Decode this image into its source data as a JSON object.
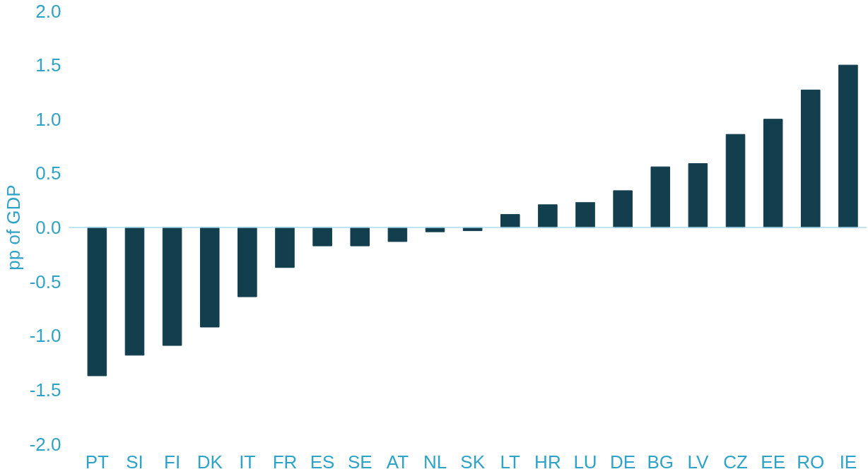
{
  "chart_data": {
    "type": "bar",
    "ylabel": "pp of GDP",
    "categories": [
      "PT",
      "SI",
      "FI",
      "DK",
      "IT",
      "FR",
      "ES",
      "SE",
      "AT",
      "NL",
      "SK",
      "LT",
      "HR",
      "LU",
      "DE",
      "BG",
      "LV",
      "CZ",
      "EE",
      "RO",
      "IE"
    ],
    "values": [
      -1.37,
      -1.18,
      -1.09,
      -0.92,
      -0.64,
      -0.37,
      -0.17,
      -0.17,
      -0.13,
      -0.04,
      -0.03,
      0.12,
      0.21,
      0.23,
      0.34,
      0.56,
      0.59,
      0.86,
      1.0,
      1.27,
      1.5
    ],
    "color": "#123e4e",
    "ylim": [
      -2.0,
      2.0
    ],
    "yticks": [
      {
        "value": -2,
        "label": "-2.0"
      },
      {
        "value": -1.5,
        "label": "-1.5"
      },
      {
        "value": -1,
        "label": "-1.0"
      },
      {
        "value": -0.5,
        "label": "-0.5"
      },
      {
        "value": 0,
        "label": "0.0"
      },
      {
        "value": 0.5,
        "label": "0.5"
      },
      {
        "value": 1,
        "label": "1.0"
      },
      {
        "value": 1.5,
        "label": "1.5"
      },
      {
        "value": 2,
        "label": "2.0"
      }
    ],
    "grid": false,
    "ref_lines": [
      {
        "axis": "y",
        "value": 0,
        "color": "#a9dcee"
      }
    ]
  }
}
